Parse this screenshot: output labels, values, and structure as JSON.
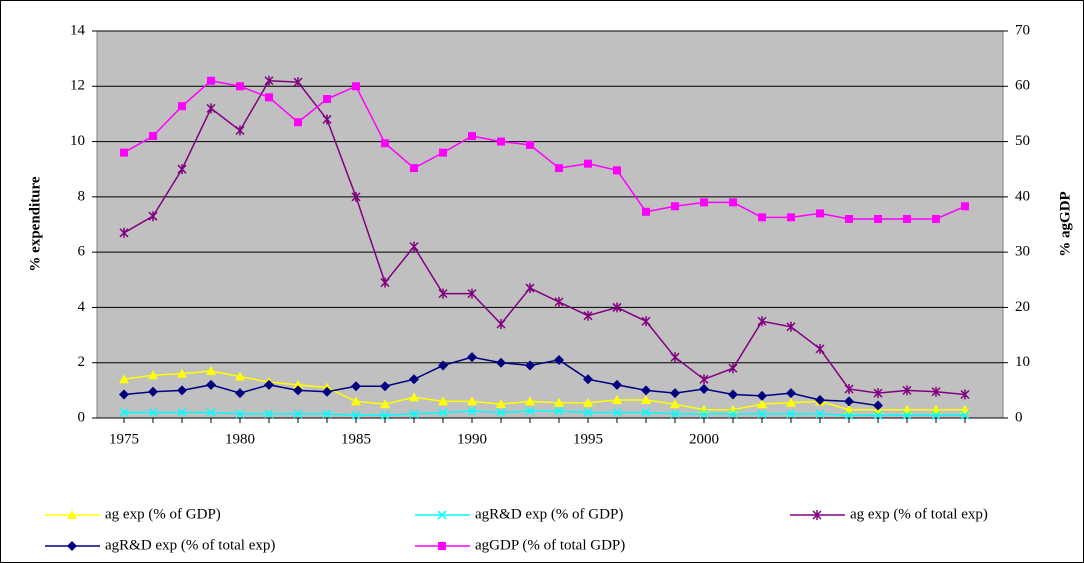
{
  "chart_data": {
    "type": "line",
    "y_label": "% expenditure",
    "y2_label": "% agGDP",
    "categories": [
      "1975",
      null,
      null,
      null,
      "1980",
      null,
      null,
      null,
      "1985",
      null,
      null,
      null,
      "1990",
      null,
      null,
      null,
      "1995",
      null,
      null,
      null,
      "2000",
      null,
      null,
      null,
      null,
      null,
      null,
      null,
      null,
      null
    ],
    "ylim": [
      0,
      14
    ],
    "yticks": [
      0,
      2,
      4,
      6,
      8,
      10,
      12,
      14
    ],
    "y2lim": [
      0,
      70
    ],
    "y2ticks": [
      0,
      10,
      20,
      30,
      40,
      50,
      60,
      70
    ],
    "grid": true,
    "legend": "bottom",
    "background": "#c0c0c0",
    "series": [
      {
        "name": "ag exp (% of GDP)",
        "color": "#ffff00",
        "marker": "triangle",
        "values": [
          1.4,
          1.55,
          1.6,
          1.7,
          1.5,
          1.3,
          1.2,
          1.1,
          0.6,
          0.5,
          0.75,
          0.6,
          0.6,
          0.5,
          0.6,
          0.55,
          0.55,
          0.65,
          0.65,
          0.5,
          0.3,
          0.3,
          0.5,
          0.55,
          0.6,
          0.3,
          0.3,
          0.3,
          0.3,
          0.3
        ]
      },
      {
        "name": "agR&D exp (% of GDP)",
        "color": "#00ffff",
        "marker": "x",
        "values": [
          0.2,
          0.2,
          0.2,
          0.2,
          0.15,
          0.15,
          0.15,
          0.15,
          0.1,
          0.1,
          0.15,
          0.2,
          0.25,
          0.2,
          0.25,
          0.25,
          0.2,
          0.2,
          0.2,
          0.15,
          0.15,
          0.15,
          0.15,
          0.15,
          0.15,
          0.1,
          0.1,
          0.1,
          0.1,
          0.1
        ]
      },
      {
        "name": "ag exp (% of total exp)",
        "color": "#800080",
        "marker": "star",
        "values": [
          6.7,
          7.3,
          9.0,
          11.2,
          10.4,
          12.2,
          12.15,
          10.8,
          8.0,
          4.9,
          6.2,
          4.5,
          4.5,
          3.4,
          4.7,
          4.2,
          3.7,
          4.0,
          3.5,
          2.2,
          1.4,
          1.8,
          3.5,
          3.3,
          2.5,
          1.05,
          0.9,
          1.0,
          0.95,
          0.85
        ]
      },
      {
        "name": "agR&D exp (% of total exp)",
        "color": "#000080",
        "marker": "diamond",
        "values": [
          0.85,
          0.95,
          1.0,
          1.2,
          0.9,
          1.2,
          1.0,
          0.95,
          1.15,
          1.15,
          1.4,
          1.9,
          2.2,
          2.0,
          1.9,
          2.1,
          1.4,
          1.2,
          1.0,
          0.9,
          1.05,
          0.85,
          0.8,
          0.9,
          0.65,
          0.6,
          0.45,
          null,
          null,
          null
        ]
      },
      {
        "name": "agGDP (% of total GDP)",
        "color": "#ff00ff",
        "marker": "square",
        "axis": "y2",
        "values": [
          48,
          51,
          56.4,
          61,
          60,
          58,
          53.5,
          57.7,
          60,
          49.7,
          45.2,
          48,
          51,
          50,
          49.4,
          45.2,
          46,
          44.8,
          37.3,
          38.3,
          39,
          39,
          36.3,
          36.3,
          37,
          36,
          36,
          36,
          36,
          38.3
        ]
      }
    ]
  }
}
